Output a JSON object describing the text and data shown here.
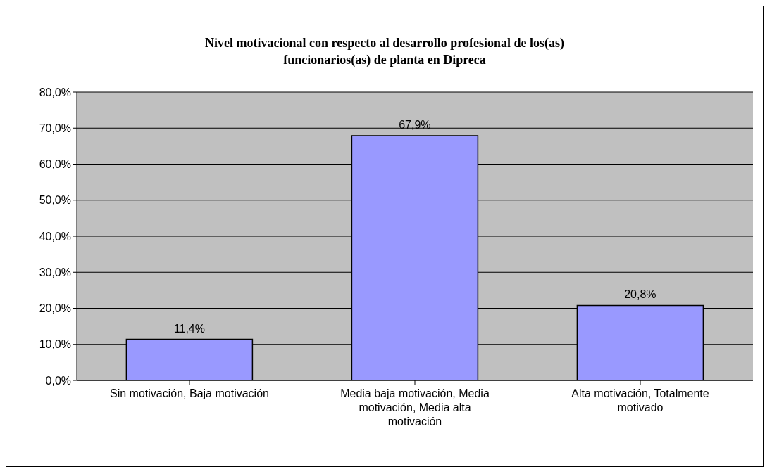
{
  "chart_data": {
    "type": "bar",
    "title": "Nivel motivacional con respecto al desarrollo profesional de los(as) funcionarios(as) de planta en Dipreca",
    "categories": [
      "Sin motivación, Baja motivación",
      "Media baja motivación, Media motivación, Media alta motivación",
      "Alta motivación, Totalmente motivado"
    ],
    "values": [
      11.4,
      67.9,
      20.8
    ],
    "value_labels": [
      "11,4%",
      "67,9%",
      "20,8%"
    ],
    "color": "#9999ff",
    "ylim": [
      0,
      80
    ],
    "yticks": [
      {
        "value": 0,
        "label": "0,0%"
      },
      {
        "value": 10,
        "label": "10,0%"
      },
      {
        "value": 20,
        "label": "20,0%"
      },
      {
        "value": 30,
        "label": "30,0%"
      },
      {
        "value": 40,
        "label": "40,0%"
      },
      {
        "value": 50,
        "label": "50,0%"
      },
      {
        "value": 60,
        "label": "60,0%"
      },
      {
        "value": 70,
        "label": "70,0%"
      },
      {
        "value": 80,
        "label": "80,0%"
      }
    ],
    "grid": "y",
    "legend": false
  }
}
